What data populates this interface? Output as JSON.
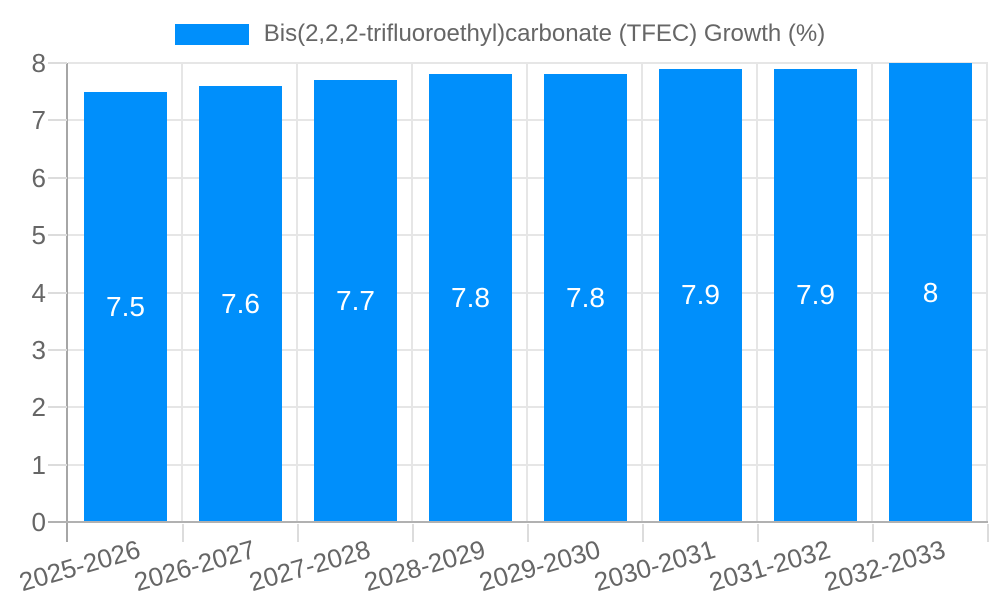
{
  "chart_data": {
    "type": "bar",
    "title": "",
    "legend": "Bis(2,2,2-trifluoroethyl)carbonate (TFEC) Growth (%)",
    "legend_position": "top",
    "categories": [
      "2025-2026",
      "2026-2027",
      "2027-2028",
      "2028-2029",
      "2029-2030",
      "2030-2031",
      "2031-2032",
      "2032-2033"
    ],
    "series": [
      {
        "name": "Bis(2,2,2-trifluoroethyl)carbonate (TFEC) Growth (%)",
        "values": [
          7.5,
          7.6,
          7.7,
          7.8,
          7.8,
          7.9,
          7.9,
          8
        ]
      }
    ],
    "value_labels": [
      "7.5",
      "7.6",
      "7.7",
      "7.8",
      "7.8",
      "7.9",
      "7.9",
      "8"
    ],
    "xlabel": "",
    "ylabel": "",
    "ylim": [
      0,
      8
    ],
    "yticks": [
      0,
      1,
      2,
      3,
      4,
      5,
      6,
      7,
      8
    ],
    "grid": true,
    "x_label_rotation_deg": -16,
    "colors": {
      "bar": "#008FFB",
      "axis_text": "#666666",
      "grid": "#e6e6e6",
      "axis_line": "#a6a6a6",
      "tick": "#dcdcdc",
      "value_label": "#ffffff",
      "background": "#ffffff"
    }
  }
}
